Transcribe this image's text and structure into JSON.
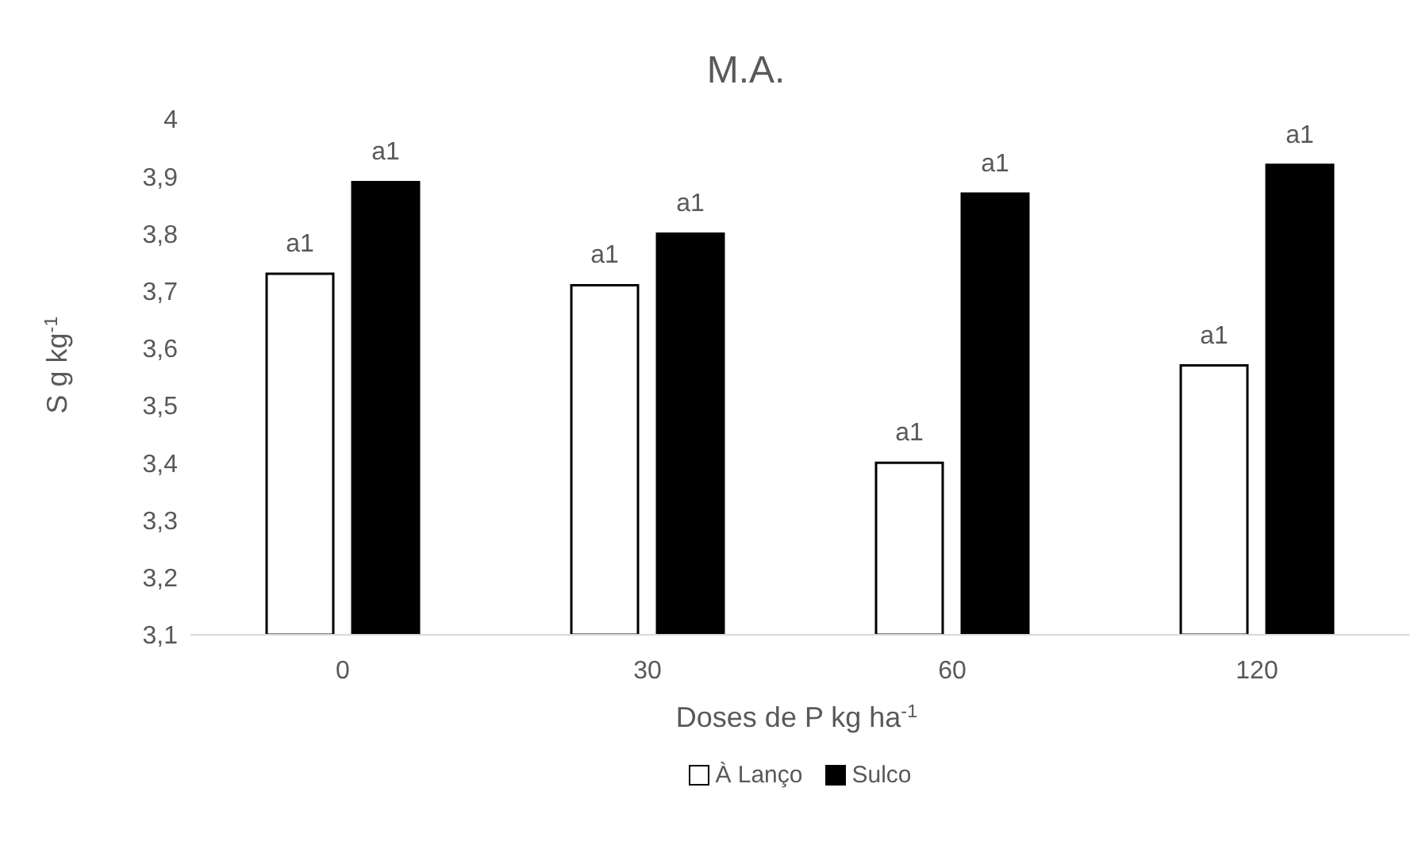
{
  "chart_data": {
    "type": "bar",
    "title": "M.A.",
    "xlabel": "Doses de P kg ha$^{-1}$",
    "ylabel": "S g kg$^{-1}$",
    "categories": [
      "0",
      "30",
      "60",
      "120"
    ],
    "series": [
      {
        "name": "À Lanço",
        "color": "#ffffff",
        "values": [
          3.73,
          3.71,
          3.4,
          3.57
        ],
        "value_labels": [
          "a1",
          "a1",
          "a1",
          "a1"
        ]
      },
      {
        "name": "Sulco",
        "color": "#000000",
        "values": [
          3.89,
          3.8,
          3.87,
          3.92
        ],
        "value_labels": [
          "a1",
          "a1",
          "a1",
          "a1"
        ]
      }
    ],
    "ylim": [
      3.1,
      4
    ],
    "yticks": [
      {
        "value": 3.1,
        "label": "3,1"
      },
      {
        "value": 3.2,
        "label": "3,2"
      },
      {
        "value": 3.3,
        "label": "3,3"
      },
      {
        "value": 3.4,
        "label": "3,4"
      },
      {
        "value": 3.5,
        "label": "3,5"
      },
      {
        "value": 3.6,
        "label": "3,6"
      },
      {
        "value": 3.7,
        "label": "3,7"
      },
      {
        "value": 3.8,
        "label": "3,8"
      },
      {
        "value": 3.9,
        "label": "3,9"
      },
      {
        "value": 4,
        "label": "4"
      }
    ],
    "grid": false,
    "legend": "bottom"
  }
}
